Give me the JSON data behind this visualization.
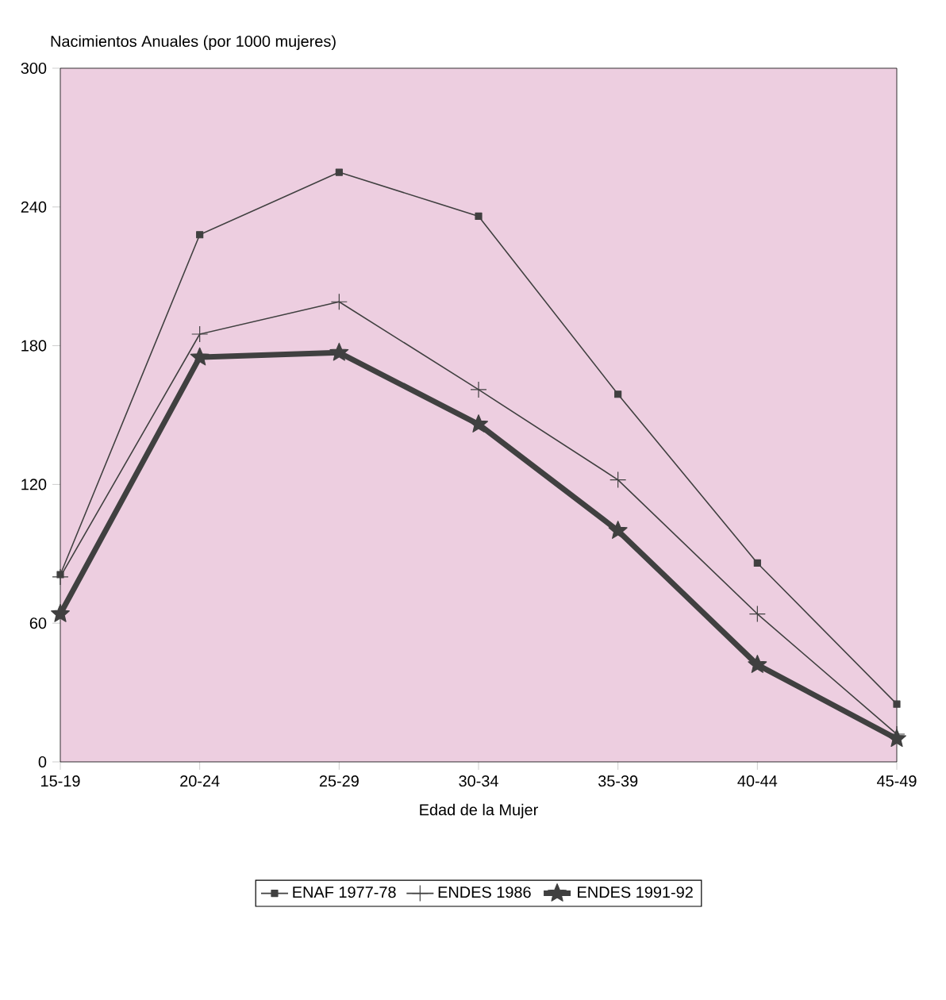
{
  "chart_data": {
    "type": "line",
    "ylabel": "Nacimientos Anuales (por 1000 mujeres)",
    "xlabel": "Edad de la Mujer",
    "categories": [
      "15-19",
      "20-24",
      "25-29",
      "30-34",
      "35-39",
      "40-44",
      "45-49"
    ],
    "series": [
      {
        "name": "ENAF 1977-78",
        "color": "#404040",
        "marker": "square",
        "values": [
          81,
          228,
          255,
          236,
          159,
          86,
          25
        ]
      },
      {
        "name": "ENDES 1986",
        "color": "#404040",
        "marker": "cross",
        "values": [
          80,
          185,
          199,
          161,
          122,
          64,
          12
        ]
      },
      {
        "name": "ENDES 1991-92",
        "color": "#404040",
        "marker": "star",
        "values": [
          64,
          175,
          177,
          146,
          100,
          42,
          10
        ]
      }
    ],
    "ylim": [
      0,
      300
    ],
    "yticks": [
      0,
      60,
      120,
      180,
      240,
      300
    ],
    "grid": false,
    "legend": "bottom",
    "line_style": "solid"
  }
}
